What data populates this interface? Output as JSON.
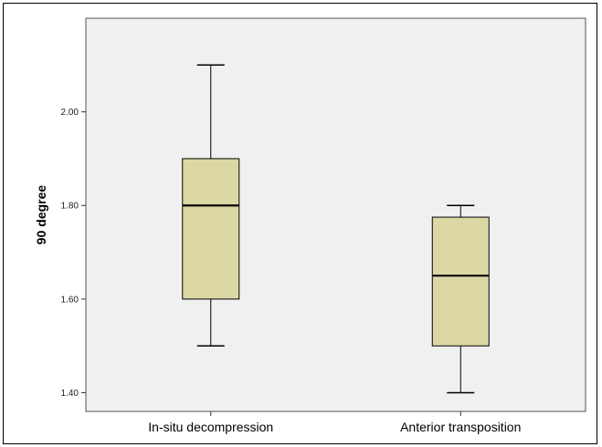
{
  "chart_data": {
    "type": "boxplot",
    "title": "",
    "xlabel": "",
    "ylabel": "90 degree",
    "ylim": [
      1.36,
      2.2
    ],
    "yticks": [
      {
        "value": 1.4,
        "label": "1.40"
      },
      {
        "value": 1.6,
        "label": "1.60"
      },
      {
        "value": 1.8,
        "label": "1.80"
      },
      {
        "value": 2.0,
        "label": "2.00"
      }
    ],
    "categories": [
      "In-situ decompression",
      "Anterior transposition"
    ],
    "boxes": [
      {
        "min": 1.5,
        "q1": 1.6,
        "median": 1.8,
        "q3": 1.9,
        "max": 2.1
      },
      {
        "min": 1.4,
        "q1": 1.5,
        "median": 1.65,
        "q3": 1.775,
        "max": 1.8
      }
    ],
    "grid": false,
    "colors": {
      "plot_background": "#f0f0f0",
      "box_fill": "#dcd8a6",
      "stroke": "#000000"
    }
  }
}
